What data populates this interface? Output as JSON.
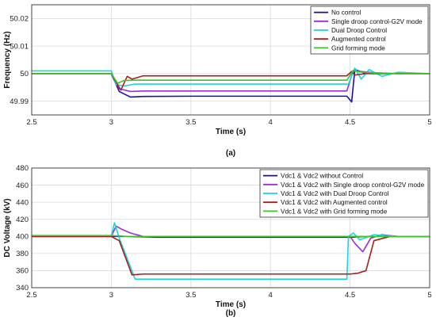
{
  "chart_data": [
    {
      "type": "line",
      "caption": "(a)",
      "xlabel": "Time (s)",
      "ylabel": "Frequency (Hz)",
      "xlim": [
        2.5,
        5
      ],
      "ylim": [
        49.985,
        50.025
      ],
      "xticks": [
        "2.5",
        "3",
        "3.5",
        "4",
        "4.5",
        "5"
      ],
      "yticks": [
        "49.99",
        "50",
        "50.01",
        "50.02"
      ],
      "grid": true,
      "legend_position": "top-right",
      "series": [
        {
          "name": "No control",
          "color": "#1a0fa8",
          "x": [
            2.5,
            3.0,
            3.05,
            3.12,
            3.2,
            3.5,
            4.0,
            4.48,
            4.51,
            4.53,
            4.6,
            4.8,
            5.0
          ],
          "y": [
            50.0,
            50.0,
            49.9935,
            49.9915,
            49.9917,
            49.9918,
            49.9918,
            49.9918,
            49.9897,
            50.0015,
            50.0,
            50.0,
            50.0
          ]
        },
        {
          "name": "Single droop control-G2V mode",
          "color": "#9b2fd4",
          "x": [
            2.5,
            3.0,
            3.05,
            3.12,
            3.2,
            3.5,
            4.0,
            4.48,
            4.52,
            4.56,
            4.65,
            4.8,
            5.0
          ],
          "y": [
            50.0,
            50.0,
            49.9945,
            49.9935,
            49.9937,
            49.9937,
            49.9937,
            49.9937,
            50.0012,
            50.0008,
            50.0003,
            50.0,
            50.0
          ]
        },
        {
          "name": "Dual Droop Control",
          "color": "#1ad7d7",
          "x": [
            2.5,
            3.0,
            3.03,
            3.08,
            3.15,
            3.5,
            4.0,
            4.49,
            4.53,
            4.57,
            4.62,
            4.7,
            4.8,
            5.0
          ],
          "y": [
            50.001,
            50.001,
            49.996,
            49.9955,
            49.9962,
            49.9962,
            49.9962,
            49.9962,
            50.002,
            49.998,
            50.0015,
            49.999,
            50.0005,
            50.0
          ]
        },
        {
          "name": "Augmented control",
          "color": "#a51f1f",
          "x": [
            2.5,
            3.0,
            3.03,
            3.06,
            3.1,
            3.13,
            3.2,
            3.5,
            4.0,
            4.48,
            4.51,
            4.53,
            4.6,
            4.8,
            5.0
          ],
          "y": [
            50.0,
            50.0,
            49.997,
            49.994,
            49.999,
            49.998,
            49.9992,
            49.9992,
            49.9992,
            49.9992,
            50.0008,
            49.9995,
            50.0,
            50.0,
            50.0
          ]
        },
        {
          "name": "Grid forming mode",
          "color": "#3fc22b",
          "x": [
            2.5,
            3.0,
            3.04,
            3.08,
            3.15,
            3.5,
            4.0,
            4.48,
            4.52,
            4.56,
            4.65,
            4.8,
            5.0
          ],
          "y": [
            50.0,
            50.0,
            49.9965,
            49.9975,
            49.9976,
            49.9976,
            49.9976,
            49.9976,
            50.0012,
            50.0006,
            50.0002,
            50.0,
            50.0
          ]
        }
      ]
    },
    {
      "type": "line",
      "caption": "(b)",
      "xlabel": "Time (s)",
      "ylabel": "DC Voltage (kV)",
      "xlim": [
        2.5,
        5
      ],
      "ylim": [
        340,
        480
      ],
      "xticks": [
        "2.5",
        "3",
        "3.5",
        "4",
        "4.5",
        "5"
      ],
      "yticks": [
        "340",
        "360",
        "380",
        "400",
        "420",
        "440",
        "460",
        "480"
      ],
      "grid": true,
      "legend_position": "top-right",
      "series": [
        {
          "name": "Vdc1 & Vdc2 without Control",
          "color": "#1a0fa8",
          "x": [
            2.5,
            3.0,
            3.1,
            3.3,
            4.5,
            4.6,
            5.0
          ],
          "y": [
            400,
            400,
            400,
            399,
            399,
            400,
            400
          ]
        },
        {
          "name": "Vdc1 & Vdc2 with Single droop control-G2V mode",
          "color": "#9b2fd4",
          "x": [
            2.5,
            3.0,
            3.03,
            3.07,
            3.12,
            3.2,
            3.3,
            4.5,
            4.53,
            4.58,
            4.63,
            4.7,
            4.8,
            5.0
          ],
          "y": [
            400,
            400,
            412,
            408,
            404,
            400,
            400,
            400,
            392,
            382,
            398,
            402,
            400,
            400
          ]
        },
        {
          "name": "Vdc1 & Vdc2 with Dual Droop Control",
          "color": "#1ad7d7",
          "x": [
            2.5,
            3.0,
            3.02,
            3.05,
            3.15,
            4.48,
            4.49,
            4.52,
            4.56,
            4.65,
            4.8,
            5.0
          ],
          "y": [
            400,
            400,
            416,
            398,
            350,
            350,
            400,
            404,
            396,
            402,
            400,
            400
          ]
        },
        {
          "name": "Vdc1 & Vdc2 with Augmented control",
          "color": "#a51f1f",
          "x": [
            2.5,
            3.0,
            3.05,
            3.13,
            3.2,
            4.5,
            4.55,
            4.6,
            4.65,
            4.75,
            5.0
          ],
          "y": [
            400,
            400,
            395,
            355,
            356,
            356,
            357,
            360,
            395,
            400,
            400
          ]
        },
        {
          "name": "Vdc1 & Vdc2 with Grid forming mode",
          "color": "#3fc22b",
          "x": [
            2.5,
            3.0,
            3.1,
            3.5,
            4.5,
            4.6,
            5.0
          ],
          "y": [
            401,
            401,
            400,
            400,
            400,
            400,
            400
          ]
        }
      ]
    }
  ]
}
